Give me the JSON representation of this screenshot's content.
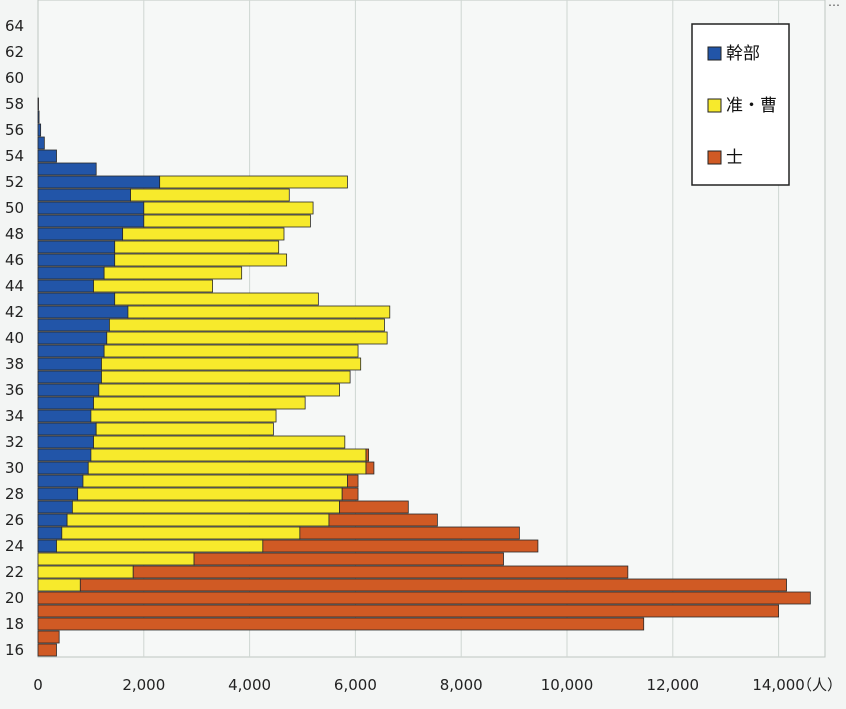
{
  "chart_data": {
    "type": "bar",
    "orientation": "horizontal",
    "stacked": true,
    "categories": [
      16,
      17,
      18,
      19,
      20,
      21,
      22,
      23,
      24,
      25,
      26,
      27,
      28,
      29,
      30,
      31,
      32,
      33,
      34,
      35,
      36,
      37,
      38,
      39,
      40,
      41,
      42,
      43,
      44,
      45,
      46,
      47,
      48,
      49,
      50,
      51,
      52,
      53,
      54,
      55,
      56,
      57,
      58
    ],
    "series": [
      {
        "name": "幹部",
        "color": "#2255a8",
        "values": [
          0,
          0,
          0,
          0,
          0,
          0,
          0,
          0,
          350,
          450,
          550,
          650,
          750,
          850,
          950,
          1000,
          1050,
          1100,
          1000,
          1050,
          1150,
          1200,
          1200,
          1250,
          1300,
          1350,
          1700,
          1450,
          1050,
          1250,
          1450,
          1450,
          1600,
          2000,
          2000,
          1750,
          2300,
          1100,
          350,
          120,
          50,
          20,
          10
        ]
      },
      {
        "name": "准・曹",
        "color": "#f7ea2c",
        "values": [
          0,
          0,
          0,
          0,
          0,
          800,
          1800,
          2950,
          3900,
          4500,
          4950,
          5050,
          5000,
          5000,
          5250,
          5200,
          4750,
          3350,
          3500,
          4000,
          4550,
          4700,
          4900,
          4800,
          5300,
          5200,
          4950,
          3850,
          2250,
          2600,
          3250,
          3100,
          3050,
          3150,
          3200,
          3000,
          3550,
          0,
          0,
          0,
          0,
          0,
          0
        ]
      },
      {
        "name": "士",
        "color": "#d05a24",
        "values": [
          350,
          400,
          11450,
          14000,
          14600,
          13350,
          9350,
          5850,
          5200,
          4150,
          2050,
          1300,
          300,
          200,
          150,
          50,
          0,
          0,
          0,
          0,
          0,
          0,
          0,
          0,
          0,
          0,
          0,
          0,
          0,
          0,
          0,
          0,
          0,
          0,
          0,
          0,
          0,
          0,
          0,
          0,
          0,
          0,
          0
        ]
      }
    ],
    "x_ticks": [
      "0",
      "2,000",
      "4,000",
      "6,000",
      "8,000",
      "10,000",
      "12,000",
      "14,000"
    ],
    "x_unit_label": "（人）",
    "y_ticks": [
      "16",
      "18",
      "20",
      "22",
      "24",
      "26",
      "28",
      "30",
      "32",
      "34",
      "36",
      "38",
      "40",
      "42",
      "44",
      "46",
      "48",
      "50",
      "52",
      "54",
      "56",
      "58",
      "60",
      "62",
      "64"
    ],
    "xlim": [
      0,
      15000
    ],
    "ylim": [
      15,
      64
    ],
    "grid": "vertical",
    "legend_position": "top-right",
    "top_right_text": "…"
  }
}
